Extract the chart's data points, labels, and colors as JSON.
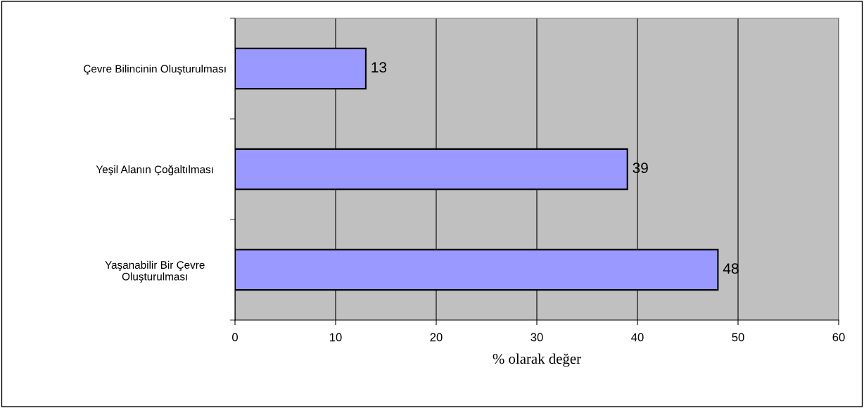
{
  "chart_data": {
    "type": "bar",
    "orientation": "horizontal",
    "xlabel": "% olarak değer",
    "categories": [
      "Çevre Bilincinin Oluşturulması",
      "Yeşil Alanın Çoğaltılması",
      "Yaşanabilir Bir Çevre\nOluşturulması"
    ],
    "values": [
      13,
      39,
      48
    ],
    "color": "#9999ff",
    "data_labels": true,
    "grid": "x",
    "xlim": [
      0,
      60
    ],
    "xticks": [
      0,
      10,
      20,
      30,
      40,
      50,
      60
    ]
  }
}
